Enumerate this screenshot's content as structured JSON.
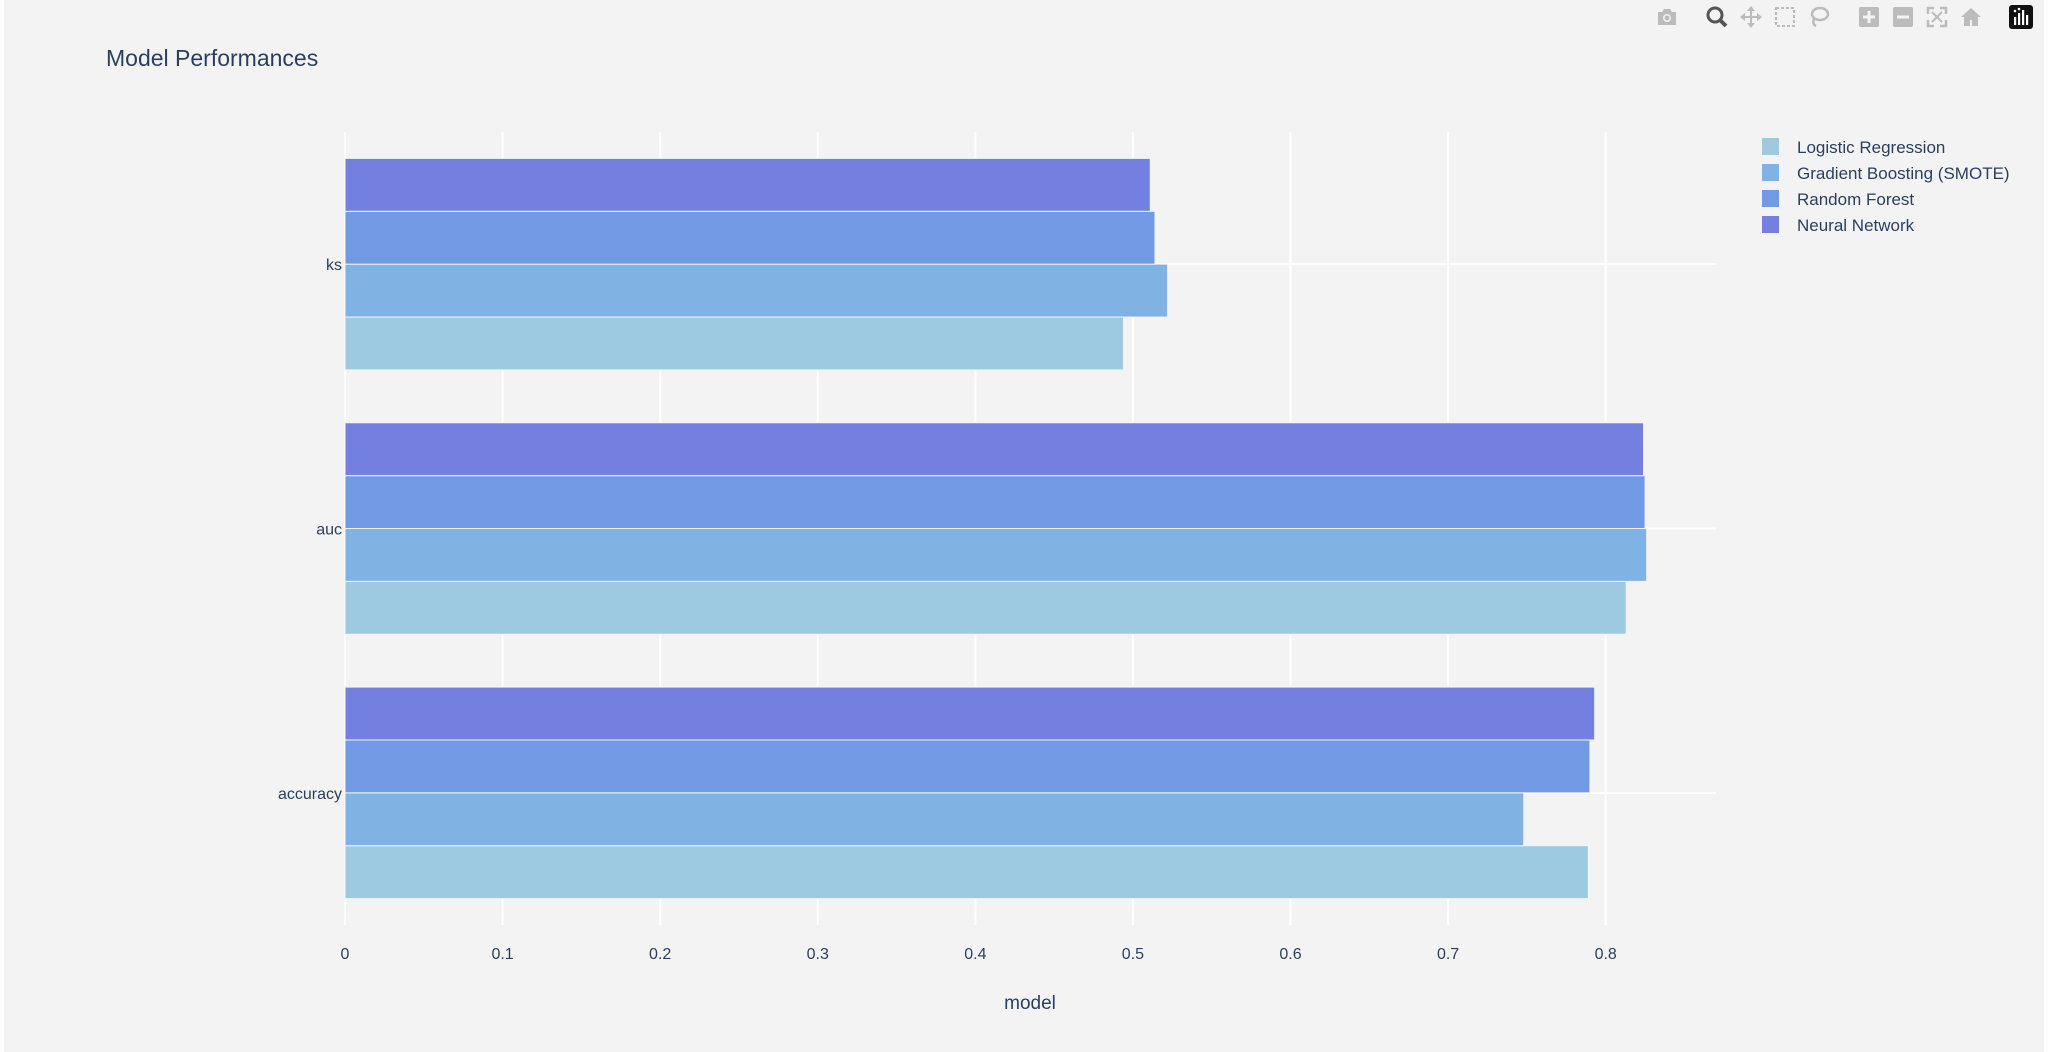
{
  "colors": {
    "paper_bg": "#f3f3f3",
    "plot_bg": "#f3f3f3",
    "grid": "#ffffff",
    "text": "#2a3f5f",
    "modebar_icon": "#bcbcbc",
    "logo_bg": "#111111"
  },
  "modebar": {
    "buttons": [
      {
        "name": "camera-icon",
        "title": "Download plot as a png"
      },
      {
        "name": "zoom-icon",
        "title": "Zoom"
      },
      {
        "name": "pan-icon",
        "title": "Pan"
      },
      {
        "name": "box-select-icon",
        "title": "Box Select"
      },
      {
        "name": "lasso-select-icon",
        "title": "Lasso Select"
      },
      {
        "name": "zoom-in-icon",
        "title": "Zoom in"
      },
      {
        "name": "zoom-out-icon",
        "title": "Zoom out"
      },
      {
        "name": "autoscale-icon",
        "title": "Autoscale"
      },
      {
        "name": "reset-axes-icon",
        "title": "Reset axes"
      },
      {
        "name": "plotly-logo-icon",
        "title": "Produced with Plotly"
      }
    ]
  },
  "chart_data": {
    "type": "bar",
    "orientation": "horizontal",
    "barmode": "group",
    "title": "Model Performances",
    "xlabel": "model",
    "ylabel": "",
    "xlim": [
      0,
      0.87
    ],
    "x_ticks": [
      0,
      0.1,
      0.2,
      0.3,
      0.4,
      0.5,
      0.6,
      0.7,
      0.8
    ],
    "x_tick_labels": [
      "0",
      "0.1",
      "0.2",
      "0.3",
      "0.4",
      "0.5",
      "0.6",
      "0.7",
      "0.8"
    ],
    "categories": [
      "ks",
      "auc",
      "accuracy"
    ],
    "grid": true,
    "legend_position": "top-right",
    "series": [
      {
        "name": "Logistic Regression",
        "color": "#9ecae1",
        "values": [
          0.494,
          0.813,
          0.789
        ]
      },
      {
        "name": "Gradient Boosting (SMOTE)",
        "color": "#80b3e3",
        "values": [
          0.522,
          0.826,
          0.748
        ]
      },
      {
        "name": "Random Forest",
        "color": "#729ae4",
        "values": [
          0.514,
          0.825,
          0.79
        ]
      },
      {
        "name": "Neural Network",
        "color": "#7380e0",
        "values": [
          0.511,
          0.824,
          0.793
        ]
      }
    ]
  }
}
